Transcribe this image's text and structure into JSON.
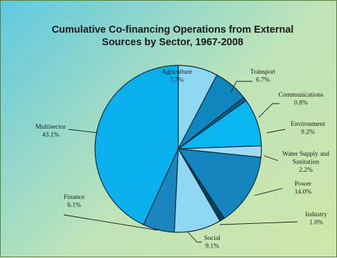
{
  "chart_data": {
    "type": "pie",
    "title": [
      "Cumulative Co-financing Operations from External",
      "Sources  by  Sector, 1967-2008"
    ],
    "start_category": "Agriculture",
    "direction": "clockwise",
    "slices": [
      {
        "name": [
          "Agriculture"
        ],
        "value": 7.7,
        "value_label": "7.7%",
        "color": "#8ed8f4"
      },
      {
        "name": [
          "Transport"
        ],
        "value": 6.7,
        "value_label": "6.7%",
        "color": "#0f86be"
      },
      {
        "name": [
          "Communications"
        ],
        "value": 0.8,
        "value_label": "0.8%",
        "color": "#0a5f8a"
      },
      {
        "name": [
          "Environment"
        ],
        "value": 9.2,
        "value_label": "9.2%",
        "color": "#09b6ef"
      },
      {
        "name": [
          "Water Supply and",
          "Sanitation"
        ],
        "value": 2.2,
        "value_label": "2.2%",
        "color": "#9edcf5"
      },
      {
        "name": [
          "Power"
        ],
        "value": 14.0,
        "value_label": "14.0%",
        "color": "#1386c0"
      },
      {
        "name": [
          "Industry"
        ],
        "value": 1.0,
        "value_label": "1.0%",
        "color": "#0d3e57"
      },
      {
        "name": [
          "Social"
        ],
        "value": 9.1,
        "value_label": "9.1%",
        "color": "#8ed8f4"
      },
      {
        "name": [
          "Finance"
        ],
        "value": 6.1,
        "value_label": "6.1%",
        "color": "#1a86bf"
      },
      {
        "name": [
          "Multisector"
        ],
        "value": 43.1,
        "value_label": "43.1%",
        "color": "#0ab0ed"
      }
    ]
  }
}
